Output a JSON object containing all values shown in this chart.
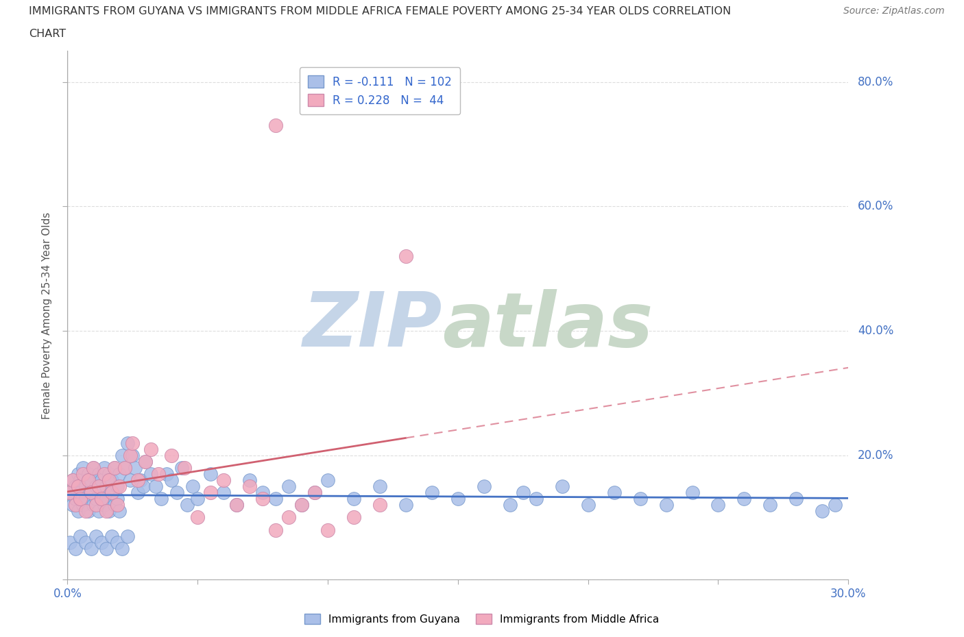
{
  "title_line1": "IMMIGRANTS FROM GUYANA VS IMMIGRANTS FROM MIDDLE AFRICA FEMALE POVERTY AMONG 25-34 YEAR OLDS CORRELATION",
  "title_line2": "CHART",
  "source": "Source: ZipAtlas.com",
  "ylabel": "Female Poverty Among 25-34 Year Olds",
  "xlim": [
    0.0,
    0.3
  ],
  "ylim": [
    0.0,
    0.85
  ],
  "guyana_color": "#AABFE8",
  "guyana_edge": "#7799CC",
  "middle_africa_color": "#F2AABE",
  "middle_africa_edge": "#CC88AA",
  "guyana_R": -0.111,
  "guyana_N": 102,
  "middle_africa_R": 0.228,
  "middle_africa_N": 44,
  "trend_guyana_color": "#4472C4",
  "trend_africa_solid_color": "#D06070",
  "trend_africa_dash_color": "#E090A0",
  "watermark_zip": "ZIP",
  "watermark_atlas": "atlas",
  "watermark_color": "#C8D8EC",
  "legend_border_color": "#BBBBBB",
  "r_color": "#CC3333",
  "n_color": "#3366CC",
  "guyana_x": [
    0.001,
    0.002,
    0.002,
    0.003,
    0.003,
    0.004,
    0.004,
    0.005,
    0.005,
    0.006,
    0.006,
    0.007,
    0.007,
    0.008,
    0.008,
    0.009,
    0.009,
    0.01,
    0.01,
    0.011,
    0.011,
    0.012,
    0.012,
    0.013,
    0.013,
    0.014,
    0.014,
    0.015,
    0.015,
    0.016,
    0.016,
    0.017,
    0.017,
    0.018,
    0.018,
    0.019,
    0.019,
    0.02,
    0.02,
    0.021,
    0.022,
    0.023,
    0.024,
    0.025,
    0.026,
    0.027,
    0.028,
    0.029,
    0.03,
    0.032,
    0.034,
    0.036,
    0.038,
    0.04,
    0.042,
    0.044,
    0.046,
    0.048,
    0.05,
    0.055,
    0.06,
    0.065,
    0.07,
    0.075,
    0.08,
    0.085,
    0.09,
    0.095,
    0.1,
    0.11,
    0.12,
    0.13,
    0.14,
    0.15,
    0.16,
    0.17,
    0.175,
    0.18,
    0.19,
    0.2,
    0.21,
    0.22,
    0.23,
    0.24,
    0.25,
    0.26,
    0.27,
    0.28,
    0.29,
    0.295,
    0.001,
    0.003,
    0.005,
    0.007,
    0.009,
    0.011,
    0.013,
    0.015,
    0.017,
    0.019,
    0.021,
    0.023
  ],
  "guyana_y": [
    0.14,
    0.16,
    0.12,
    0.15,
    0.13,
    0.17,
    0.11,
    0.16,
    0.14,
    0.18,
    0.12,
    0.15,
    0.13,
    0.17,
    0.11,
    0.16,
    0.14,
    0.18,
    0.12,
    0.15,
    0.13,
    0.17,
    0.11,
    0.16,
    0.14,
    0.18,
    0.12,
    0.15,
    0.13,
    0.17,
    0.11,
    0.16,
    0.14,
    0.18,
    0.12,
    0.15,
    0.13,
    0.17,
    0.11,
    0.2,
    0.18,
    0.22,
    0.16,
    0.2,
    0.18,
    0.14,
    0.16,
    0.15,
    0.19,
    0.17,
    0.15,
    0.13,
    0.17,
    0.16,
    0.14,
    0.18,
    0.12,
    0.15,
    0.13,
    0.17,
    0.14,
    0.12,
    0.16,
    0.14,
    0.13,
    0.15,
    0.12,
    0.14,
    0.16,
    0.13,
    0.15,
    0.12,
    0.14,
    0.13,
    0.15,
    0.12,
    0.14,
    0.13,
    0.15,
    0.12,
    0.14,
    0.13,
    0.12,
    0.14,
    0.12,
    0.13,
    0.12,
    0.13,
    0.11,
    0.12,
    0.06,
    0.05,
    0.07,
    0.06,
    0.05,
    0.07,
    0.06,
    0.05,
    0.07,
    0.06,
    0.05,
    0.07
  ],
  "africa_x": [
    0.001,
    0.002,
    0.003,
    0.004,
    0.005,
    0.006,
    0.007,
    0.008,
    0.009,
    0.01,
    0.011,
    0.012,
    0.013,
    0.014,
    0.015,
    0.016,
    0.017,
    0.018,
    0.019,
    0.02,
    0.022,
    0.024,
    0.025,
    0.027,
    0.03,
    0.032,
    0.035,
    0.04,
    0.045,
    0.05,
    0.055,
    0.06,
    0.065,
    0.07,
    0.075,
    0.08,
    0.085,
    0.09,
    0.095,
    0.1,
    0.11,
    0.12,
    0.13,
    0.08
  ],
  "africa_y": [
    0.14,
    0.16,
    0.12,
    0.15,
    0.13,
    0.17,
    0.11,
    0.16,
    0.14,
    0.18,
    0.12,
    0.15,
    0.13,
    0.17,
    0.11,
    0.16,
    0.14,
    0.18,
    0.12,
    0.15,
    0.18,
    0.2,
    0.22,
    0.16,
    0.19,
    0.21,
    0.17,
    0.2,
    0.18,
    0.1,
    0.14,
    0.16,
    0.12,
    0.15,
    0.13,
    0.08,
    0.1,
    0.12,
    0.14,
    0.08,
    0.1,
    0.12,
    0.52,
    0.73
  ]
}
